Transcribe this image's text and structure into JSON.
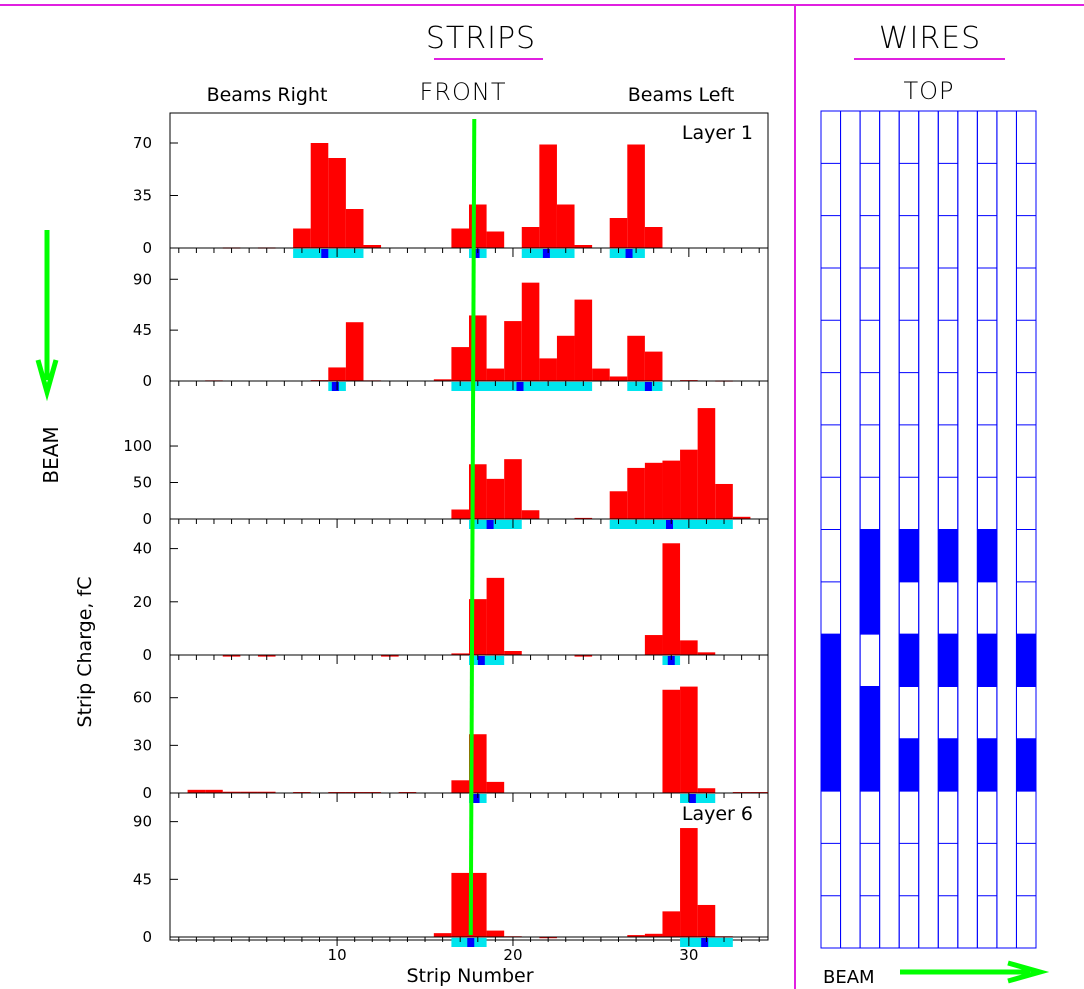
{
  "headers": {
    "strips": "STRIPS",
    "wires": "WIRES",
    "front": "FRONT",
    "top": "TOP",
    "beams_right": "Beams Right",
    "beams_left": "Beams Left"
  },
  "side_labels": {
    "beam_vertical": "BEAM",
    "beam_horizontal": "BEAM"
  },
  "colors": {
    "frame": "#e020e0",
    "hist_fill": "#ff0000",
    "track": "#00ff00",
    "cluster": "#00e5ee",
    "cluster_peak": "#0000ff",
    "wire_grid": "#0000ff"
  },
  "chart_data": [
    {
      "type": "bar",
      "title": "STRIPS FRONT",
      "xlabel": "Strip Number",
      "ylabel": "Strip Charge, fC",
      "x_ticks": [
        10,
        20,
        30
      ],
      "xlim": [
        0.5,
        34.5
      ],
      "track_line": {
        "x_top": 17.8,
        "x_bottom": 17.6
      },
      "panels": [
        {
          "label": "Layer 1",
          "ylim": [
            0,
            90
          ],
          "yticks": [
            0,
            35,
            70
          ],
          "bars": [
            [
              4,
              0.4
            ],
            [
              6,
              0.4
            ],
            [
              8,
              13
            ],
            [
              9,
              70
            ],
            [
              10,
              60
            ],
            [
              11,
              26
            ],
            [
              12,
              2
            ],
            [
              17,
              13
            ],
            [
              18,
              29
            ],
            [
              19,
              11
            ],
            [
              21,
              14
            ],
            [
              22,
              69
            ],
            [
              23,
              29
            ],
            [
              24,
              2
            ],
            [
              26,
              20
            ],
            [
              27,
              69
            ],
            [
              28,
              14
            ]
          ],
          "clusters": [
            {
              "from": 7.5,
              "to": 11.5,
              "peak": 9.3
            },
            {
              "from": 17.5,
              "to": 18.5,
              "peak": 17.9
            },
            {
              "from": 20.5,
              "to": 23.5,
              "peak": 21.9
            },
            {
              "from": 25.5,
              "to": 27.5,
              "peak": 26.6
            }
          ]
        },
        {
          "label": "",
          "ylim": [
            0,
            115
          ],
          "yticks": [
            0,
            45,
            90
          ],
          "bars": [
            [
              3,
              0.6
            ],
            [
              9,
              0.8
            ],
            [
              10,
              12
            ],
            [
              11,
              52
            ],
            [
              12,
              0.6
            ],
            [
              16,
              1.5
            ],
            [
              17,
              30
            ],
            [
              18,
              58
            ],
            [
              19,
              11
            ],
            [
              20,
              53
            ],
            [
              21,
              87
            ],
            [
              22,
              20
            ],
            [
              23,
              40
            ],
            [
              24,
              72
            ],
            [
              25,
              11
            ],
            [
              26,
              4
            ],
            [
              27,
              40
            ],
            [
              28,
              26
            ],
            [
              30,
              0.8
            ],
            [
              32,
              0.5
            ]
          ],
          "clusters": [
            {
              "from": 9.5,
              "to": 10.5,
              "peak": 9.9
            },
            {
              "from": 16.5,
              "to": 24.5,
              "peak": 20.4
            },
            {
              "from": 26.5,
              "to": 28.5,
              "peak": 27.7
            }
          ]
        },
        {
          "label": "",
          "ylim": [
            0,
            185
          ],
          "yticks": [
            0,
            50,
            100
          ],
          "bars": [
            [
              17,
              13
            ],
            [
              18,
              75
            ],
            [
              19,
              55
            ],
            [
              20,
              82
            ],
            [
              21,
              12
            ],
            [
              24,
              1.5
            ],
            [
              26,
              38
            ],
            [
              27,
              70
            ],
            [
              28,
              77
            ],
            [
              29,
              80
            ],
            [
              30,
              95
            ],
            [
              31,
              152
            ],
            [
              32,
              48
            ],
            [
              33,
              3
            ]
          ],
          "clusters": [
            {
              "from": 17.5,
              "to": 20.5,
              "peak": 18.7
            },
            {
              "from": 25.5,
              "to": 32.5,
              "peak": 28.9
            }
          ]
        },
        {
          "label": "",
          "ylim": [
            0,
            50
          ],
          "yticks": [
            0,
            20,
            40
          ],
          "bars": [
            [
              4,
              -0.6
            ],
            [
              6,
              -0.6
            ],
            [
              13,
              -0.6
            ],
            [
              17,
              0.6
            ],
            [
              18,
              21
            ],
            [
              19,
              29
            ],
            [
              20,
              1.5
            ],
            [
              24,
              -0.6
            ],
            [
              28,
              7.5
            ],
            [
              29,
              42
            ],
            [
              30,
              5.5
            ],
            [
              31,
              1
            ]
          ],
          "clusters": [
            {
              "from": 17.5,
              "to": 19.5,
              "peak": 18.2
            },
            {
              "from": 28.5,
              "to": 29.5,
              "peak": 29.0
            }
          ]
        },
        {
          "label": "",
          "ylim": [
            0,
            85
          ],
          "yticks": [
            0,
            30,
            60
          ],
          "bars": [
            [
              2,
              2
            ],
            [
              3,
              2
            ],
            [
              4,
              0.8
            ],
            [
              5,
              0.8
            ],
            [
              6,
              0.8
            ],
            [
              8,
              0.6
            ],
            [
              10,
              0.6
            ],
            [
              11,
              0.6
            ],
            [
              12,
              0.6
            ],
            [
              14,
              0.6
            ],
            [
              17,
              8
            ],
            [
              18,
              37
            ],
            [
              19,
              7
            ],
            [
              29,
              65
            ],
            [
              30,
              67
            ],
            [
              31,
              3
            ],
            [
              33,
              0.6
            ],
            [
              34,
              0.6
            ]
          ],
          "clusters": [
            {
              "from": 17.5,
              "to": 18.5,
              "peak": 17.9
            },
            {
              "from": 29.5,
              "to": 31.5,
              "peak": 30.2
            }
          ]
        },
        {
          "label": "Layer 6",
          "ylim": [
            0,
            110
          ],
          "yticks": [
            0,
            45,
            90
          ],
          "bars": [
            [
              16,
              3
            ],
            [
              17,
              50
            ],
            [
              18,
              50
            ],
            [
              19,
              5
            ],
            [
              20,
              0.6
            ],
            [
              22,
              -0.8
            ],
            [
              27,
              1.5
            ],
            [
              28,
              2.5
            ],
            [
              29,
              20
            ],
            [
              30,
              85
            ],
            [
              31,
              25
            ],
            [
              32,
              0.6
            ]
          ],
          "clusters": [
            {
              "from": 16.5,
              "to": 18.5,
              "peak": 17.6
            },
            {
              "from": 29.5,
              "to": 32.5,
              "peak": 30.9
            }
          ]
        }
      ]
    },
    {
      "type": "heatmap",
      "title": "WIRES TOP",
      "columns": 11,
      "rows": 16,
      "filled_segments": [
        {
          "col": 0,
          "from_row": 10,
          "to_row": 12
        },
        {
          "col": 2,
          "from_row": 8,
          "to_row": 9
        },
        {
          "col": 2,
          "from_row": 11,
          "to_row": 12
        },
        {
          "col": 4,
          "from_row": 8,
          "to_row": 8
        },
        {
          "col": 4,
          "from_row": 10,
          "to_row": 10
        },
        {
          "col": 4,
          "from_row": 12,
          "to_row": 12
        },
        {
          "col": 6,
          "from_row": 8,
          "to_row": 8
        },
        {
          "col": 6,
          "from_row": 10,
          "to_row": 10
        },
        {
          "col": 6,
          "from_row": 12,
          "to_row": 12
        },
        {
          "col": 8,
          "from_row": 8,
          "to_row": 8
        },
        {
          "col": 8,
          "from_row": 10,
          "to_row": 10
        },
        {
          "col": 8,
          "from_row": 12,
          "to_row": 12
        },
        {
          "col": 10,
          "from_row": 10,
          "to_row": 10
        },
        {
          "col": 10,
          "from_row": 12,
          "to_row": 12
        }
      ]
    }
  ]
}
